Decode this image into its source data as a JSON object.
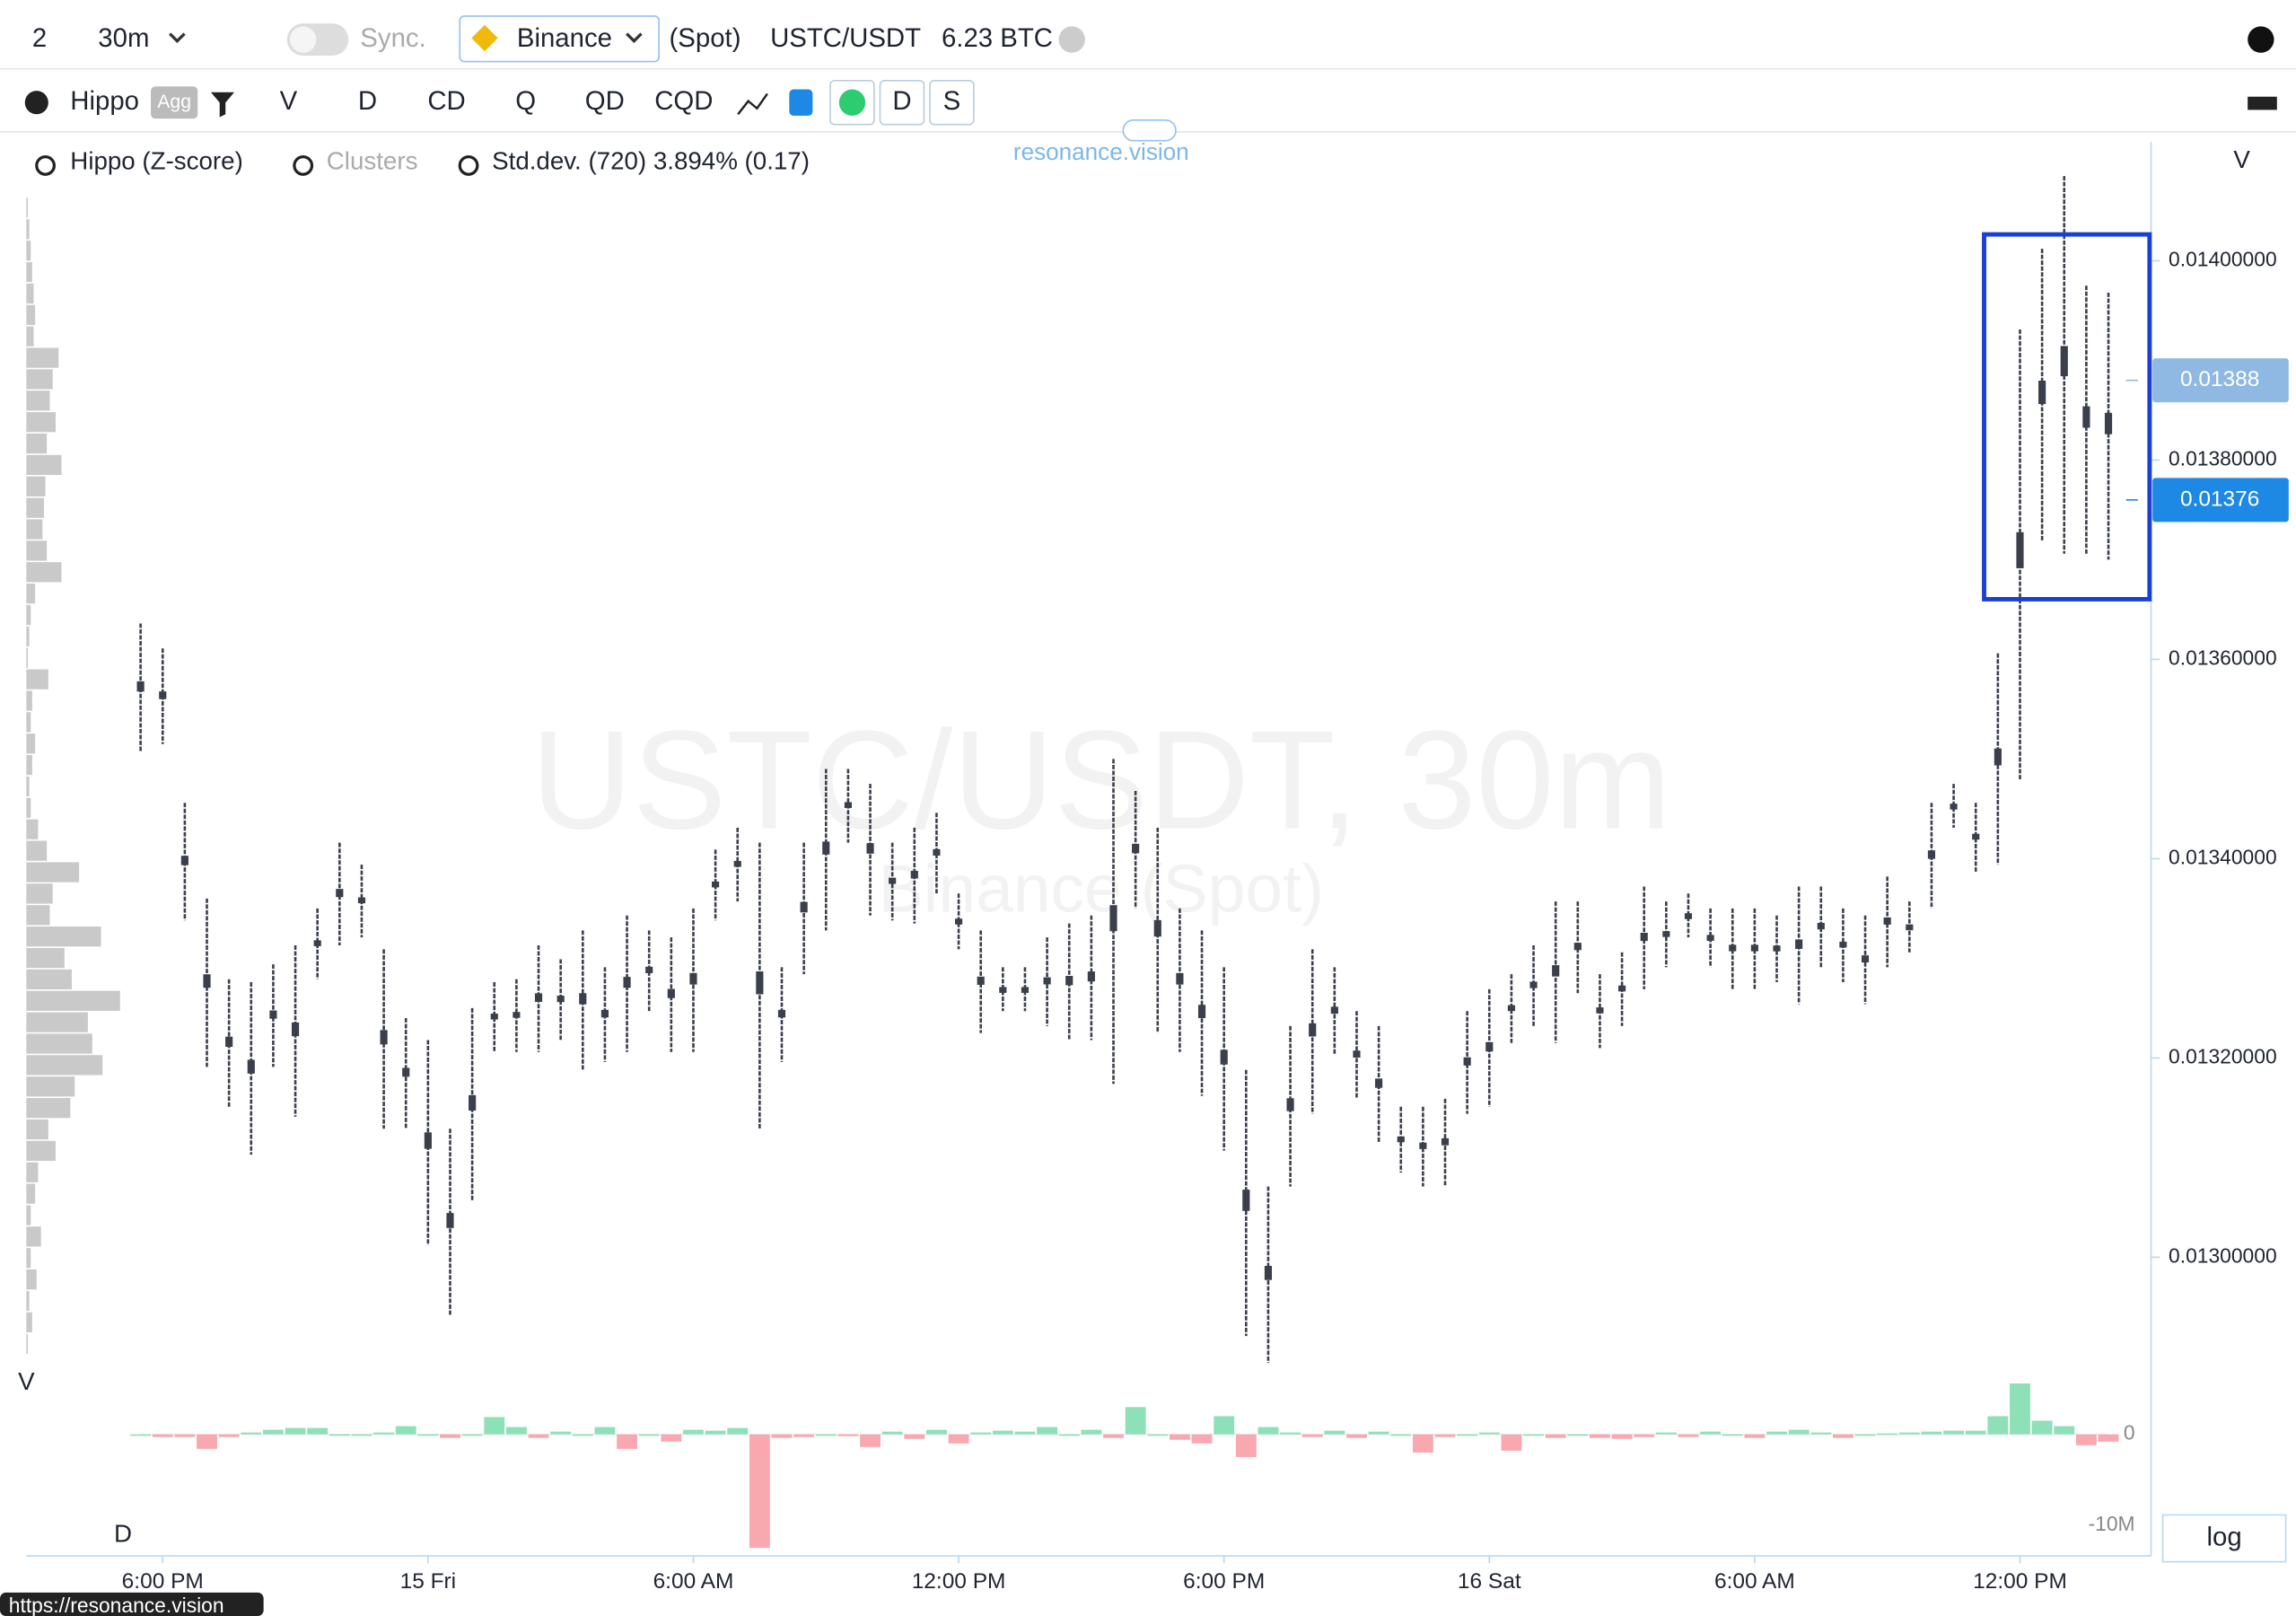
{
  "toolbar": {
    "layout": "2",
    "interval": "30m",
    "sync": "Sync.",
    "exchange": "Binance",
    "market": "(Spot)",
    "symbol": "USTC/USDT",
    "volume": "6.23 BTC"
  },
  "toolbar2": {
    "indicator": "Hippo",
    "agg": "Agg",
    "buttons": [
      "V",
      "D",
      "CD",
      "Q",
      "QD",
      "CQD"
    ],
    "d": "D",
    "s": "S"
  },
  "legend": {
    "hippo": "Hippo (Z-score)",
    "clusters": "Clusters",
    "stddev": "Std.dev. (720) 3.894% (0.17)"
  },
  "brand": "resonance.vision",
  "log": "log",
  "status": "https://resonance.vision",
  "chart_data": {
    "type": "cluster",
    "watermark": "USTC/USDT, 30m",
    "watermark2": "Binance (Spot)",
    "price_axis_label": "V",
    "profile_label": "V",
    "delta_label": "D",
    "ylim": [
      0.012887,
      0.014122
    ],
    "yticks": [
      {
        "value": 0.014,
        "label": "0.01400000"
      },
      {
        "value": 0.0138,
        "label": "0.01380000"
      },
      {
        "value": 0.0136,
        "label": "0.01360000"
      },
      {
        "value": 0.0134,
        "label": "0.01340000"
      },
      {
        "value": 0.0132,
        "label": "0.01320000"
      },
      {
        "value": 0.013,
        "label": "0.01300000"
      }
    ],
    "price_markers": [
      {
        "value": 0.01388,
        "color": "#8fb8e2"
      },
      {
        "value": 0.01376,
        "color": "#1e88e5"
      }
    ],
    "xlim": [
      -1,
      91
    ],
    "xticks": [
      {
        "value": 1,
        "label": "6:00 PM"
      },
      {
        "value": 13,
        "label": "15 Fri"
      },
      {
        "value": 25,
        "label": "6:00 AM"
      },
      {
        "value": 37,
        "label": "12:00 PM"
      },
      {
        "value": 49,
        "label": "6:00 PM"
      },
      {
        "value": 61,
        "label": "16 Sat"
      },
      {
        "value": 73,
        "label": "6:00 AM"
      },
      {
        "value": 85,
        "label": "12:00 PM"
      }
    ],
    "series": [
      {
        "high": [
          0.013636,
          0.013611,
          0.013456,
          0.01336,
          0.013279,
          0.013276,
          0.013294,
          0.013313,
          0.01335,
          0.013416,
          0.013394,
          0.013309,
          0.01324,
          0.013218,
          0.013129,
          0.01325,
          0.013276,
          0.013279,
          0.013313,
          0.013299,
          0.013328,
          0.013291,
          0.013343,
          0.013328,
          0.013321,
          0.01335,
          0.013409,
          0.013431,
          0.013416,
          0.013291,
          0.013416,
          0.01349,
          0.01349,
          0.013475,
          0.013416,
          0.013431,
          0.013446,
          0.013365,
          0.013328,
          0.013291,
          0.013291,
          0.013321,
          0.013335,
          0.013343,
          0.0135,
          0.013468,
          0.013431,
          0.01335,
          0.013328,
          0.013291,
          0.013188,
          0.013071,
          0.013232,
          0.013309,
          0.013291,
          0.013247,
          0.013232,
          0.013151,
          0.013151,
          0.013159,
          0.013247,
          0.013269,
          0.013284,
          0.013313,
          0.013357,
          0.013357,
          0.013284,
          0.013306,
          0.013372,
          0.013357,
          0.013365,
          0.01335,
          0.01335,
          0.01335,
          0.013343,
          0.013372,
          0.013372,
          0.01335,
          0.013343,
          0.013382,
          0.013357,
          0.013456,
          0.013475,
          0.013456,
          0.013606,
          0.013931,
          0.014012,
          0.014085,
          0.013975,
          0.013968
        ],
        "low": [
          0.013507,
          0.013515,
          0.013338,
          0.013191,
          0.013151,
          0.013103,
          0.013191,
          0.013141,
          0.013279,
          0.013313,
          0.013321,
          0.013129,
          0.013129,
          0.013012,
          0.012941,
          0.013056,
          0.013206,
          0.013206,
          0.013206,
          0.013218,
          0.013188,
          0.013196,
          0.013206,
          0.013247,
          0.013206,
          0.013206,
          0.013338,
          0.013357,
          0.013129,
          0.013196,
          0.013284,
          0.013328,
          0.013416,
          0.013343,
          0.013338,
          0.013335,
          0.013365,
          0.013309,
          0.013225,
          0.013247,
          0.013247,
          0.013232,
          0.013218,
          0.013218,
          0.013174,
          0.01335,
          0.013225,
          0.013206,
          0.013162,
          0.013107,
          0.012921,
          0.012894,
          0.013071,
          0.013144,
          0.013203,
          0.013159,
          0.013115,
          0.013085,
          0.013071,
          0.013071,
          0.013144,
          0.013151,
          0.013215,
          0.013232,
          0.013215,
          0.013265,
          0.01321,
          0.013232,
          0.013269,
          0.013291,
          0.013321,
          0.013291,
          0.013269,
          0.013269,
          0.013276,
          0.013254,
          0.013291,
          0.013276,
          0.013254,
          0.013291,
          0.013306,
          0.01335,
          0.013431,
          0.013387,
          0.013394,
          0.013479,
          0.013718,
          0.013706,
          0.013706,
          0.0137
        ],
        "color": "#3a3f4b"
      }
    ],
    "delta": {
      "y2lim": [
        -13060000,
        6290000
      ],
      "y2ticks": [
        0,
        {
          "value": -10000000,
          "label": "-10M"
        }
      ],
      "up_color": "#8de0b7",
      "down_color": "#f8a8ae",
      "values": [
        0,
        -300000,
        -300000,
        -1600000,
        -300000,
        200000,
        500000,
        700000,
        700000,
        0,
        0,
        200000,
        900000,
        0,
        -400000,
        0,
        1900000,
        800000,
        -400000,
        300000,
        0,
        800000,
        -1600000,
        0,
        -800000,
        500000,
        400000,
        700000,
        -12500000,
        -400000,
        -300000,
        0,
        -200000,
        -1400000,
        300000,
        -500000,
        500000,
        -1000000,
        200000,
        400000,
        300000,
        800000,
        0,
        500000,
        -400000,
        3000000,
        0,
        -600000,
        -1000000,
        2000000,
        -2500000,
        800000,
        200000,
        -300000,
        400000,
        -400000,
        300000,
        0,
        -2000000,
        -300000,
        0,
        200000,
        -1800000,
        0,
        -400000,
        0,
        -400000,
        -500000,
        -300000,
        200000,
        -300000,
        300000,
        0,
        -400000,
        300000,
        500000,
        200000,
        -400000,
        0,
        100000,
        200000,
        300000,
        400000,
        400000,
        2000000,
        5600000,
        1500000,
        900000,
        -1200000,
        -800000
      ]
    },
    "volume_profile": {
      "color": "#c9c9c9",
      "values": [
        1,
        2,
        3,
        4,
        5,
        6,
        5,
        22,
        18,
        16,
        20,
        14,
        24,
        13,
        12,
        11,
        14,
        24,
        6,
        3,
        2,
        1,
        15,
        4,
        3,
        6,
        4,
        2,
        3,
        8,
        14,
        36,
        18,
        16,
        51,
        26,
        31,
        64,
        42,
        45,
        52,
        33,
        30,
        15,
        20,
        8,
        6,
        3,
        10,
        3,
        7,
        2,
        4,
        1
      ]
    }
  }
}
